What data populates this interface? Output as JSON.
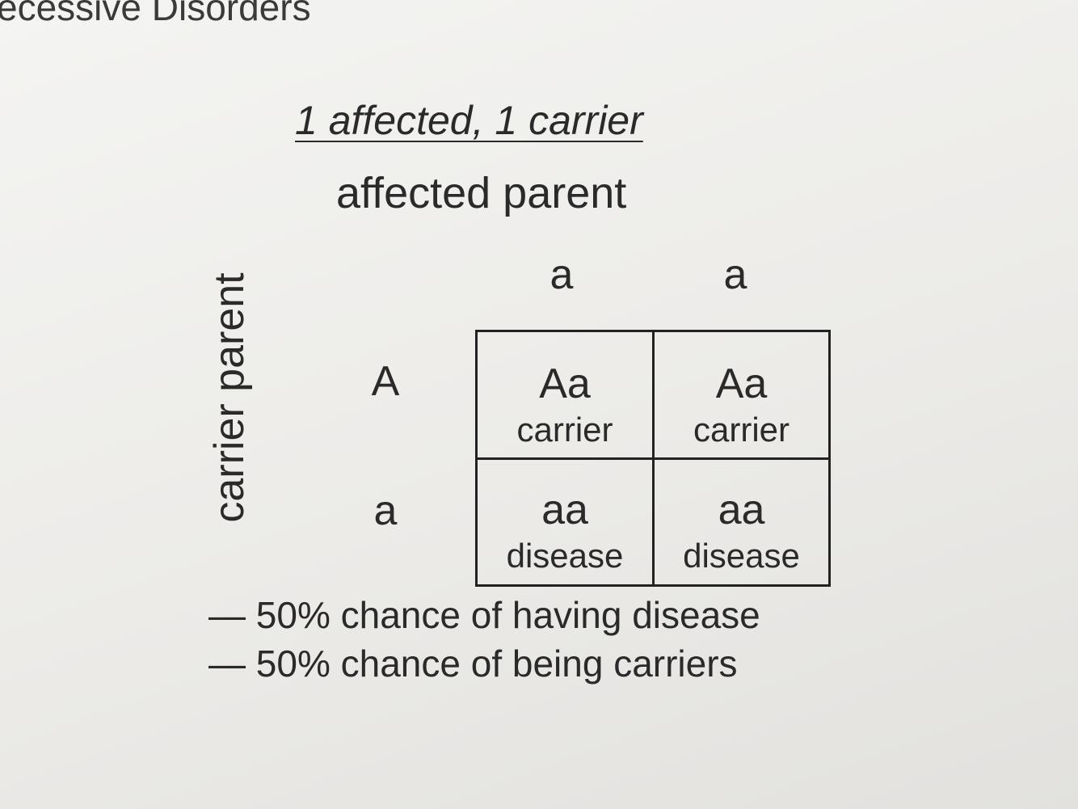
{
  "header": {
    "title": "ecessive Disorders"
  },
  "subtitle": "1 affected, 1 carrier",
  "top_label": "affected parent",
  "side_label": "carrier parent",
  "columns": [
    "a",
    "a"
  ],
  "rows": [
    {
      "allele": "A",
      "cells": [
        {
          "genotype": "Aa",
          "status": "carrier"
        },
        {
          "genotype": "Aa",
          "status": "carrier"
        }
      ]
    },
    {
      "allele": "a",
      "cells": [
        {
          "genotype": "aa",
          "status": "disease"
        },
        {
          "genotype": "aa",
          "status": "disease"
        }
      ]
    }
  ],
  "notes": [
    "— 50% chance of having disease",
    "— 50% chance of being carriers"
  ]
}
